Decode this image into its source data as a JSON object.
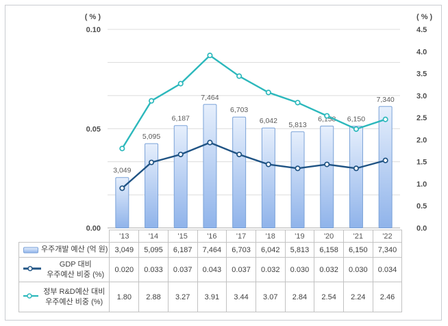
{
  "chart_data": {
    "type": "bar+line combo",
    "categories": [
      "'13",
      "'14",
      "'15",
      "'16",
      "'17",
      "'18",
      "'19",
      "'20",
      "'21",
      "'22"
    ],
    "series": [
      {
        "name": "우주개발 예산 (억 원)",
        "kind": "bar",
        "axis": "hidden",
        "axis_max": 12000,
        "values": [
          3049,
          5095,
          6187,
          7464,
          6703,
          6042,
          5813,
          6158,
          6150,
          7340
        ],
        "labels": [
          "3,049",
          "5,095",
          "6,187",
          "7,464",
          "6,703",
          "6,042",
          "5,813",
          "6,158",
          "6,150",
          "7,340"
        ],
        "colors": {
          "fill_top": "#e6effc",
          "fill_bottom": "#8fb3ea",
          "border": "#7aa2d8"
        }
      },
      {
        "name": "GDP 대비 우주예산 비중 (%)",
        "kind": "line",
        "axis": "left",
        "values": [
          0.02,
          0.033,
          0.037,
          0.043,
          0.037,
          0.032,
          0.03,
          0.032,
          0.03,
          0.034
        ],
        "labels": [
          "0.020",
          "0.033",
          "0.037",
          "0.043",
          "0.037",
          "0.032",
          "0.030",
          "0.032",
          "0.030",
          "0.034"
        ],
        "color": "#1f5384"
      },
      {
        "name": "정부 R&D예산 대비 우주예산 비중 (%)",
        "kind": "line",
        "axis": "right",
        "values": [
          1.8,
          2.88,
          3.27,
          3.91,
          3.44,
          3.07,
          2.84,
          2.54,
          2.24,
          2.46
        ],
        "labels": [
          "1.80",
          "2.88",
          "3.27",
          "3.91",
          "3.44",
          "3.07",
          "2.84",
          "2.54",
          "2.24",
          "2.46"
        ],
        "color": "#2cb8bc"
      }
    ],
    "left_axis": {
      "unit": "( % )",
      "min": 0,
      "max": 0.1,
      "ticks": [
        "0.10",
        "0.05",
        "0.00"
      ]
    },
    "right_axis": {
      "unit": "( % )",
      "min": 0,
      "max": 4.5,
      "ticks": [
        "4.5",
        "4.0",
        "3.5",
        "3.0",
        "2.5",
        "2.0",
        "1.5",
        "1.0",
        "0.5",
        "0.0"
      ]
    },
    "gridline_count": 7,
    "grid": true,
    "legend_position": "table-left",
    "title": ""
  },
  "table": {
    "rows": [
      {
        "swatch": "bar",
        "label_lines": [
          "우주개발 예산 (억 원)"
        ]
      },
      {
        "swatch": "line-navy",
        "label_lines": [
          "GDP 대비",
          "우주예산 비중 (%)"
        ]
      },
      {
        "swatch": "line-teal",
        "label_lines": [
          "정부 R&D예산 대비",
          "우주예산 비중 (%)"
        ]
      }
    ]
  },
  "colors": {
    "gridline": "#dcdcdc",
    "axis_line": "#b3b3b3",
    "table_border": "#c2c2c2",
    "tick_text": "#4d4d4d",
    "bar_label_text": "#595959",
    "navy_line": "#1f5384",
    "teal_line": "#2cb8bc",
    "bar_border": "#7aa2d8"
  }
}
